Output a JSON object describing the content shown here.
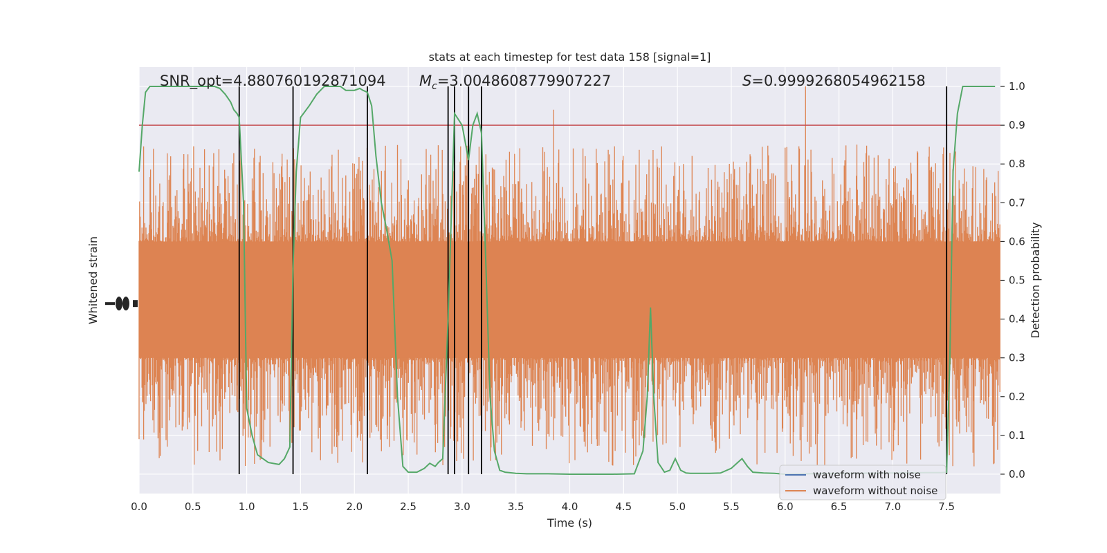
{
  "chart_data": {
    "type": "line",
    "title": "stats at each timestep for test data 158 [signal=1]",
    "xlabel": "Time (s)",
    "ylabel_left": "Whitened strain",
    "ylabel_right": "Detection probability",
    "xlim": [
      0.0,
      8.0
    ],
    "ylim_right": [
      -0.05,
      1.05
    ],
    "x_ticks": [
      "0.0",
      "0.5",
      "1.0",
      "1.5",
      "2.0",
      "2.5",
      "3.0",
      "3.5",
      "4.0",
      "4.5",
      "5.0",
      "5.5",
      "6.0",
      "6.5",
      "7.0",
      "7.5"
    ],
    "x_tick_values": [
      0.0,
      0.5,
      1.0,
      1.5,
      2.0,
      2.5,
      3.0,
      3.5,
      4.0,
      4.5,
      5.0,
      5.5,
      6.0,
      6.5,
      7.0,
      7.5
    ],
    "y_right_ticks": [
      "0.0",
      "0.1",
      "0.2",
      "0.3",
      "0.4",
      "0.5",
      "0.6",
      "0.7",
      "0.8",
      "0.9",
      "1.0"
    ],
    "y_right_tick_values": [
      0.0,
      0.1,
      0.2,
      0.3,
      0.4,
      0.5,
      0.6,
      0.7,
      0.8,
      0.9,
      1.0
    ],
    "grid": true,
    "threshold": 0.9,
    "annotations": {
      "snr": "SNR_opt=4.880760192871094",
      "mc_symbol": "M",
      "mc_sub": "c",
      "mc_value": "=3.0048608779907227",
      "s_symbol": "S",
      "s_value": "=0.9999268054962158"
    },
    "vertical_lines": [
      0.93,
      1.43,
      2.12,
      2.87,
      2.93,
      3.06,
      3.18,
      7.5
    ],
    "series": [
      {
        "name": "waveform with noise",
        "color": "#4c72b0",
        "values": []
      },
      {
        "name": "waveform without noise",
        "color": "#dd8452",
        "envelope": {
          "core_low": 0.3,
          "core_high": 0.6,
          "spike_low_min": 0.02,
          "spike_high_max": 0.85,
          "notable_peaks": [
            [
              3.85,
              0.94
            ],
            [
              6.19,
              1.0
            ]
          ]
        }
      },
      {
        "name": "detection probability",
        "color": "#55a868",
        "x": [
          0.0,
          0.03,
          0.06,
          0.1,
          0.15,
          0.2,
          0.3,
          0.4,
          0.5,
          0.6,
          0.7,
          0.75,
          0.8,
          0.85,
          0.88,
          0.91,
          0.93,
          0.97,
          1.0,
          1.05,
          1.1,
          1.2,
          1.3,
          1.35,
          1.4,
          1.43,
          1.46,
          1.5,
          1.58,
          1.65,
          1.72,
          1.8,
          1.87,
          1.92,
          2.0,
          2.05,
          2.08,
          2.12,
          2.16,
          2.2,
          2.25,
          2.3,
          2.35,
          2.4,
          2.45,
          2.5,
          2.58,
          2.65,
          2.7,
          2.75,
          2.78,
          2.82,
          2.87,
          2.93,
          3.0,
          3.06,
          3.1,
          3.14,
          3.18,
          3.22,
          3.26,
          3.3,
          3.35,
          3.4,
          3.5,
          3.6,
          3.7,
          3.8,
          4.0,
          4.2,
          4.4,
          4.6,
          4.68,
          4.72,
          4.75,
          4.78,
          4.82,
          4.88,
          4.93,
          4.98,
          5.03,
          5.08,
          5.12,
          5.2,
          5.3,
          5.4,
          5.5,
          5.6,
          5.65,
          5.7,
          5.8,
          5.9,
          6.0,
          6.2,
          6.5,
          7.0,
          7.3,
          7.45,
          7.5,
          7.53,
          7.56,
          7.6,
          7.65,
          7.7,
          7.8,
          7.9,
          7.95
        ],
        "values": [
          0.78,
          0.9,
          0.985,
          1.0,
          1.0,
          1.0,
          1.0,
          1.0,
          1.0,
          1.0,
          1.0,
          0.995,
          0.98,
          0.96,
          0.94,
          0.93,
          0.92,
          0.7,
          0.17,
          0.1,
          0.05,
          0.03,
          0.025,
          0.04,
          0.07,
          0.53,
          0.78,
          0.92,
          0.95,
          0.98,
          1.0,
          1.0,
          1.0,
          0.99,
          0.99,
          0.995,
          0.99,
          0.985,
          0.95,
          0.82,
          0.7,
          0.63,
          0.55,
          0.2,
          0.02,
          0.005,
          0.005,
          0.015,
          0.028,
          0.02,
          0.03,
          0.04,
          0.4,
          0.93,
          0.9,
          0.81,
          0.9,
          0.93,
          0.88,
          0.55,
          0.2,
          0.06,
          0.01,
          0.005,
          0.002,
          0.001,
          0.001,
          0.001,
          0.0,
          0.0,
          0.0,
          0.001,
          0.06,
          0.2,
          0.43,
          0.2,
          0.03,
          0.005,
          0.01,
          0.04,
          0.01,
          0.003,
          0.002,
          0.002,
          0.002,
          0.003,
          0.015,
          0.04,
          0.02,
          0.005,
          0.003,
          0.002,
          0.0,
          0.001,
          0.002,
          0.003,
          0.004,
          0.004,
          0.005,
          0.3,
          0.78,
          0.93,
          1.0,
          1.0,
          1.0,
          1.0,
          1.0
        ]
      }
    ],
    "legend": {
      "placement": "lower-right",
      "entries": [
        "waveform with noise",
        "waveform without noise"
      ]
    }
  }
}
